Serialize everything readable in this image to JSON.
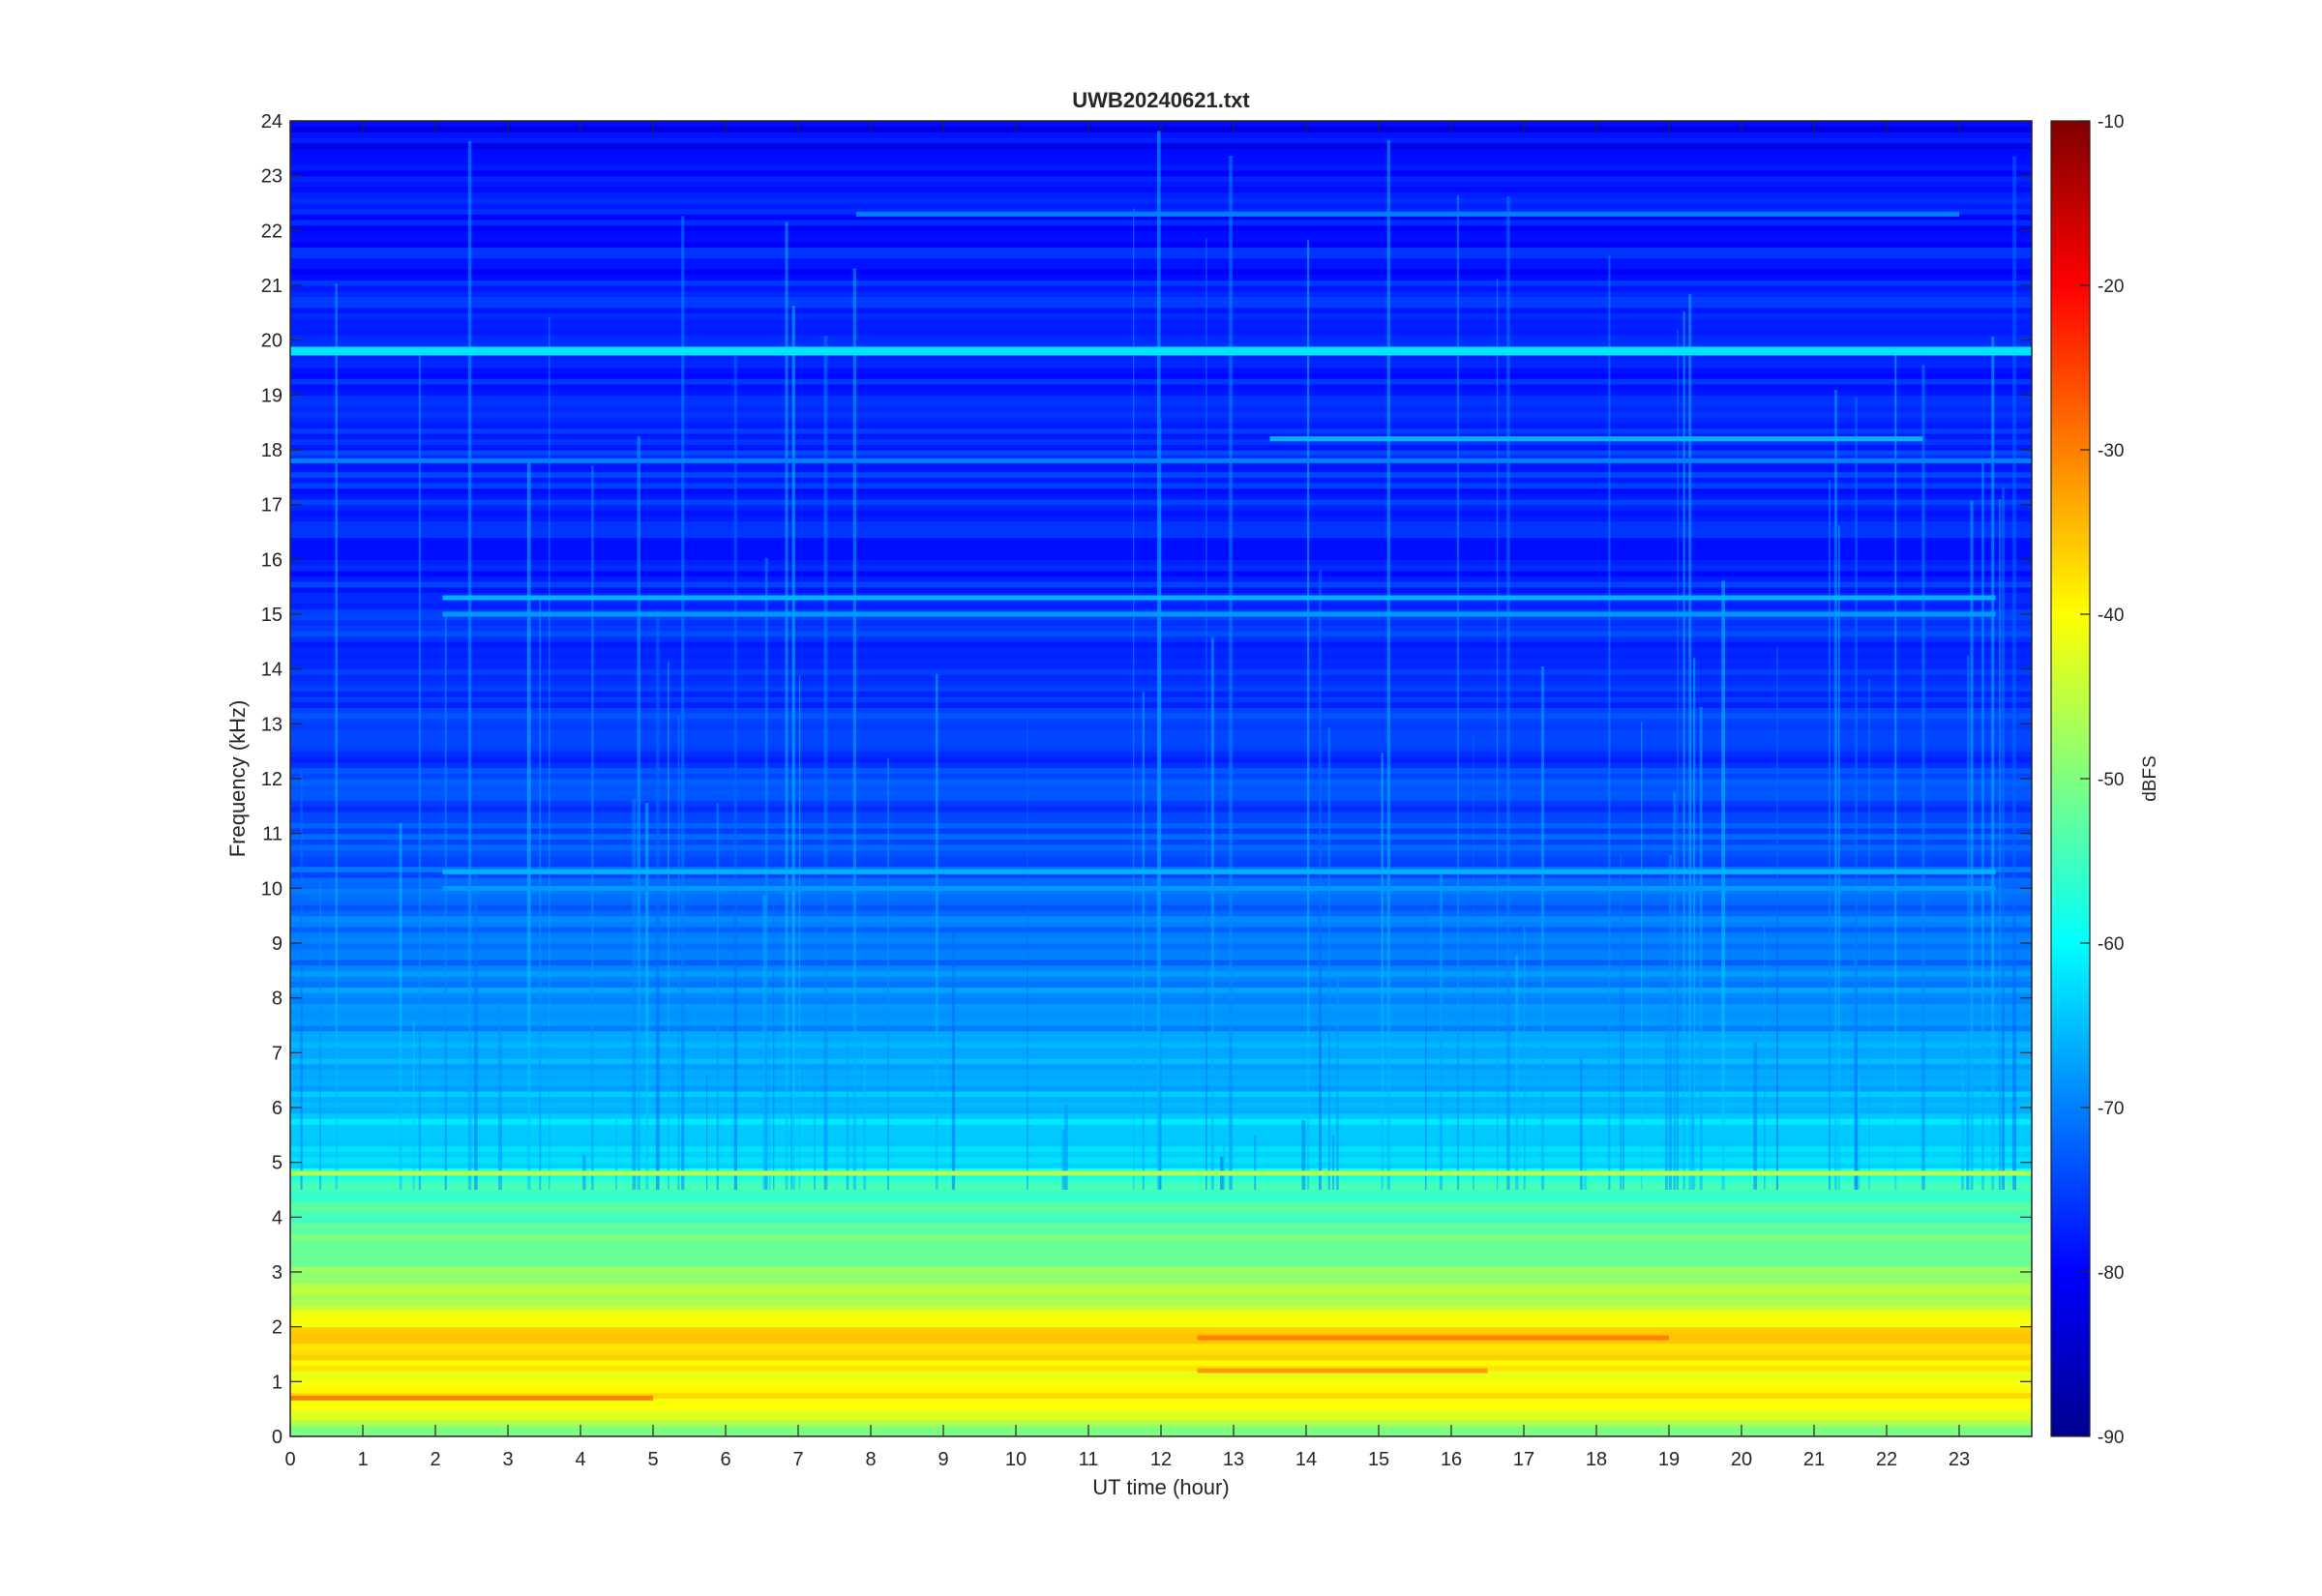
{
  "chart_data": {
    "type": "heatmap",
    "title": "UWB20240621.txt",
    "xlabel": "UT time (hour)",
    "ylabel": "Frequency (kHz)",
    "xlim": [
      0,
      24
    ],
    "ylim": [
      0,
      24
    ],
    "x_ticks": [
      "0",
      "1",
      "2",
      "3",
      "4",
      "5",
      "6",
      "7",
      "8",
      "9",
      "10",
      "11",
      "12",
      "13",
      "14",
      "15",
      "16",
      "17",
      "18",
      "19",
      "20",
      "21",
      "22",
      "23"
    ],
    "y_ticks": [
      "0",
      "1",
      "2",
      "3",
      "4",
      "5",
      "6",
      "7",
      "8",
      "9",
      "10",
      "11",
      "12",
      "13",
      "14",
      "15",
      "16",
      "17",
      "18",
      "19",
      "20",
      "21",
      "22",
      "23",
      "24"
    ],
    "colorbar": {
      "label": "dBFS",
      "limits": [
        -90,
        -10
      ],
      "ticks": [
        "-10",
        "-20",
        "-30",
        "-40",
        "-50",
        "-60",
        "-70",
        "-80",
        "-90"
      ],
      "colormap": "jet"
    },
    "level_profile_dbfs": [
      {
        "freq_khz": 0.0,
        "level": -52
      },
      {
        "freq_khz": 0.7,
        "level": -38
      },
      {
        "freq_khz": 1.0,
        "level": -43
      },
      {
        "freq_khz": 1.5,
        "level": -36
      },
      {
        "freq_khz": 2.0,
        "level": -38
      },
      {
        "freq_khz": 2.5,
        "level": -46
      },
      {
        "freq_khz": 3.0,
        "level": -49
      },
      {
        "freq_khz": 4.0,
        "level": -54
      },
      {
        "freq_khz": 4.8,
        "level": -57
      },
      {
        "freq_khz": 5.0,
        "level": -63
      },
      {
        "freq_khz": 6.0,
        "level": -64
      },
      {
        "freq_khz": 7.0,
        "level": -67
      },
      {
        "freq_khz": 9.0,
        "level": -71
      },
      {
        "freq_khz": 12.0,
        "level": -75
      },
      {
        "freq_khz": 16.0,
        "level": -77
      },
      {
        "freq_khz": 20.0,
        "level": -77
      },
      {
        "freq_khz": 24.0,
        "level": -80
      }
    ],
    "tonal_lines": [
      {
        "freq_khz": 19.8,
        "t_start": 0,
        "t_end": 24,
        "level": -62
      },
      {
        "freq_khz": 18.2,
        "t_start": 13.5,
        "t_end": 22.5,
        "level": -66
      },
      {
        "freq_khz": 17.8,
        "t_start": 0,
        "t_end": 24,
        "level": -70
      },
      {
        "freq_khz": 15.3,
        "t_start": 2.1,
        "t_end": 23.5,
        "level": -66
      },
      {
        "freq_khz": 15.0,
        "t_start": 2.1,
        "t_end": 23.5,
        "level": -68
      },
      {
        "freq_khz": 10.3,
        "t_start": 2.1,
        "t_end": 23.5,
        "level": -66
      },
      {
        "freq_khz": 10.0,
        "t_start": 2.1,
        "t_end": 23.5,
        "level": -68
      },
      {
        "freq_khz": 22.3,
        "t_start": 7.8,
        "t_end": 23.0,
        "level": -70
      },
      {
        "freq_khz": 4.8,
        "t_start": 0,
        "t_end": 24,
        "level": -46
      },
      {
        "freq_khz": 1.8,
        "t_start": 12.5,
        "t_end": 19.0,
        "level": -30
      },
      {
        "freq_khz": 1.2,
        "t_start": 12.5,
        "t_end": 16.5,
        "level": -32
      },
      {
        "freq_khz": 0.7,
        "t_start": 0,
        "t_end": 5.0,
        "level": -30
      }
    ]
  }
}
